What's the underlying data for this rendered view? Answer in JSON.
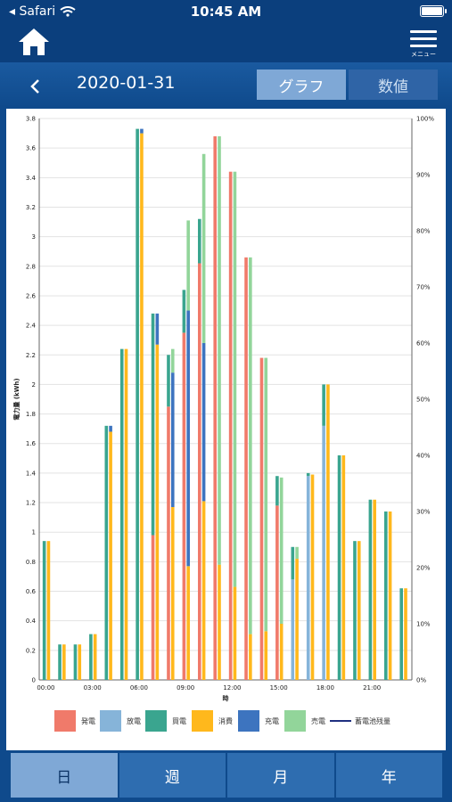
{
  "status": {
    "carrier": "Safari",
    "time": "10:45 AM"
  },
  "header": {
    "menu_label": "メニュー"
  },
  "subheader": {
    "date": "2020-01-31",
    "graph_tab": "グラフ",
    "numbers_tab": "数値"
  },
  "chart_data": {
    "type": "bar",
    "categories": [
      "00:00",
      "01:00",
      "02:00",
      "03:00",
      "04:00",
      "05:00",
      "06:00",
      "07:00",
      "08:00",
      "09:00",
      "10:00",
      "11:00",
      "12:00",
      "13:00",
      "14:00",
      "15:00",
      "16:00",
      "17:00",
      "18:00",
      "19:00",
      "20:00",
      "21:00",
      "22:00",
      "23:00"
    ],
    "x_tick_labels": [
      "00:00",
      "03:00",
      "06:00",
      "09:00",
      "12:00",
      "15:00",
      "18:00",
      "21:00"
    ],
    "xlabel": "時",
    "ylabel": "電力量 (kWh)",
    "ylim": [
      0,
      3.8
    ],
    "y_ticks": [
      "0",
      "0.2",
      "0.4",
      "0.6",
      "0.8",
      "1",
      "1.2",
      "1.4",
      "1.6",
      "1.8",
      "2",
      "2.2",
      "2.4",
      "2.6",
      "2.8",
      "3",
      "3.2",
      "3.4",
      "3.6",
      "3.8"
    ],
    "y2lim": [
      0,
      100
    ],
    "y2_ticks": [
      "0%",
      "10%",
      "20%",
      "30%",
      "40%",
      "50%",
      "60%",
      "70%",
      "80%",
      "90%",
      "100%"
    ],
    "grid": true,
    "colors": {
      "generation": "#f07a6a",
      "discharge": "#86b4d9",
      "purchase": "#3aa58f",
      "consumption": "#ffb81c",
      "charge": "#3d74bf",
      "sale": "#92d59a",
      "battery": "#1f2f80"
    },
    "supply_stack": {
      "generation": [
        0,
        0,
        0,
        0,
        0,
        0,
        0,
        0.98,
        1.85,
        2.35,
        2.82,
        3.68,
        3.44,
        2.86,
        2.18,
        1.18,
        0,
        0,
        0,
        0,
        0,
        0,
        0,
        0
      ],
      "discharge": [
        0,
        0,
        0,
        0,
        0,
        0,
        0,
        0,
        0,
        0,
        0,
        0,
        0,
        0,
        0,
        0,
        0.68,
        1.38,
        1.72,
        0,
        0,
        0,
        0,
        0
      ],
      "purchase": [
        0.94,
        0.24,
        0.24,
        0.31,
        1.72,
        2.24,
        3.73,
        1.5,
        0.35,
        0.29,
        0.3,
        0,
        0,
        0,
        0,
        0.2,
        0.22,
        0.02,
        0.28,
        1.52,
        0.94,
        1.22,
        1.14,
        0.62
      ]
    },
    "demand_stack": {
      "consumption": [
        0.94,
        0.24,
        0.24,
        0.31,
        1.68,
        2.24,
        3.7,
        2.27,
        1.17,
        0.77,
        1.21,
        0.78,
        0.63,
        0.31,
        0.33,
        0.38,
        0.82,
        1.39,
        2.0,
        1.52,
        0.94,
        1.22,
        1.14,
        0.62
      ],
      "charge": [
        0,
        0,
        0,
        0,
        0.04,
        0,
        0.03,
        0.21,
        0.91,
        1.73,
        1.07,
        0,
        0,
        0,
        0,
        0,
        0,
        0,
        0,
        0,
        0,
        0,
        0,
        0
      ],
      "sale": [
        0,
        0,
        0,
        0,
        0,
        0,
        0,
        0,
        0.16,
        0.61,
        1.28,
        2.9,
        2.81,
        2.55,
        1.85,
        0.99,
        0.08,
        0,
        0,
        0,
        0,
        0,
        0,
        0
      ]
    },
    "legend": [
      "発電",
      "放電",
      "買電",
      "消費",
      "充電",
      "売電",
      "蓄電池残量"
    ],
    "legend_placement": "bottom"
  },
  "tabs": [
    {
      "label": "日",
      "active": true
    },
    {
      "label": "週",
      "active": false
    },
    {
      "label": "月",
      "active": false
    },
    {
      "label": "年",
      "active": false
    }
  ]
}
